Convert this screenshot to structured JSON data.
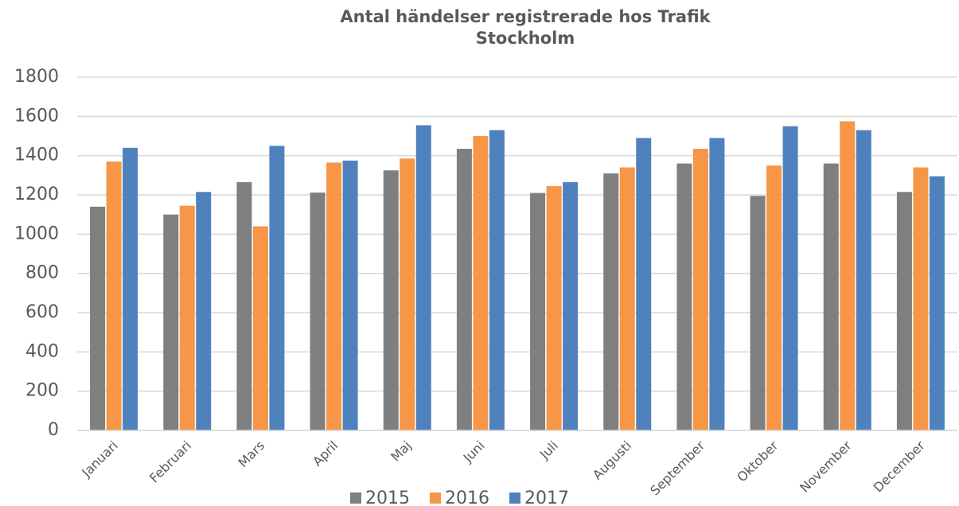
{
  "chart_data": {
    "type": "bar",
    "title": "Antal händelser registrerade hos Trafik Stockholm",
    "categories": [
      "Januari",
      "Februari",
      "Mars",
      "April",
      "Maj",
      "Juni",
      "Juli",
      "Augusti",
      "September",
      "Oktober",
      "November",
      "December"
    ],
    "series": [
      {
        "name": "2015",
        "color": "#7f7f7f",
        "values": [
          1140,
          1100,
          1265,
          1212,
          1325,
          1435,
          1210,
          1310,
          1360,
          1195,
          1360,
          1215
        ]
      },
      {
        "name": "2016",
        "color": "#f79646",
        "values": [
          1370,
          1145,
          1040,
          1365,
          1385,
          1500,
          1245,
          1340,
          1435,
          1350,
          1575,
          1340
        ]
      },
      {
        "name": "2017",
        "color": "#4f81bd",
        "values": [
          1440,
          1215,
          1450,
          1375,
          1555,
          1530,
          1265,
          1490,
          1490,
          1550,
          1530,
          1295
        ]
      }
    ],
    "ylim": [
      0,
      1800
    ],
    "yticks": [
      0,
      200,
      400,
      600,
      800,
      1000,
      1200,
      1400,
      1600,
      1800
    ],
    "grid": true,
    "legend": "bottom"
  }
}
